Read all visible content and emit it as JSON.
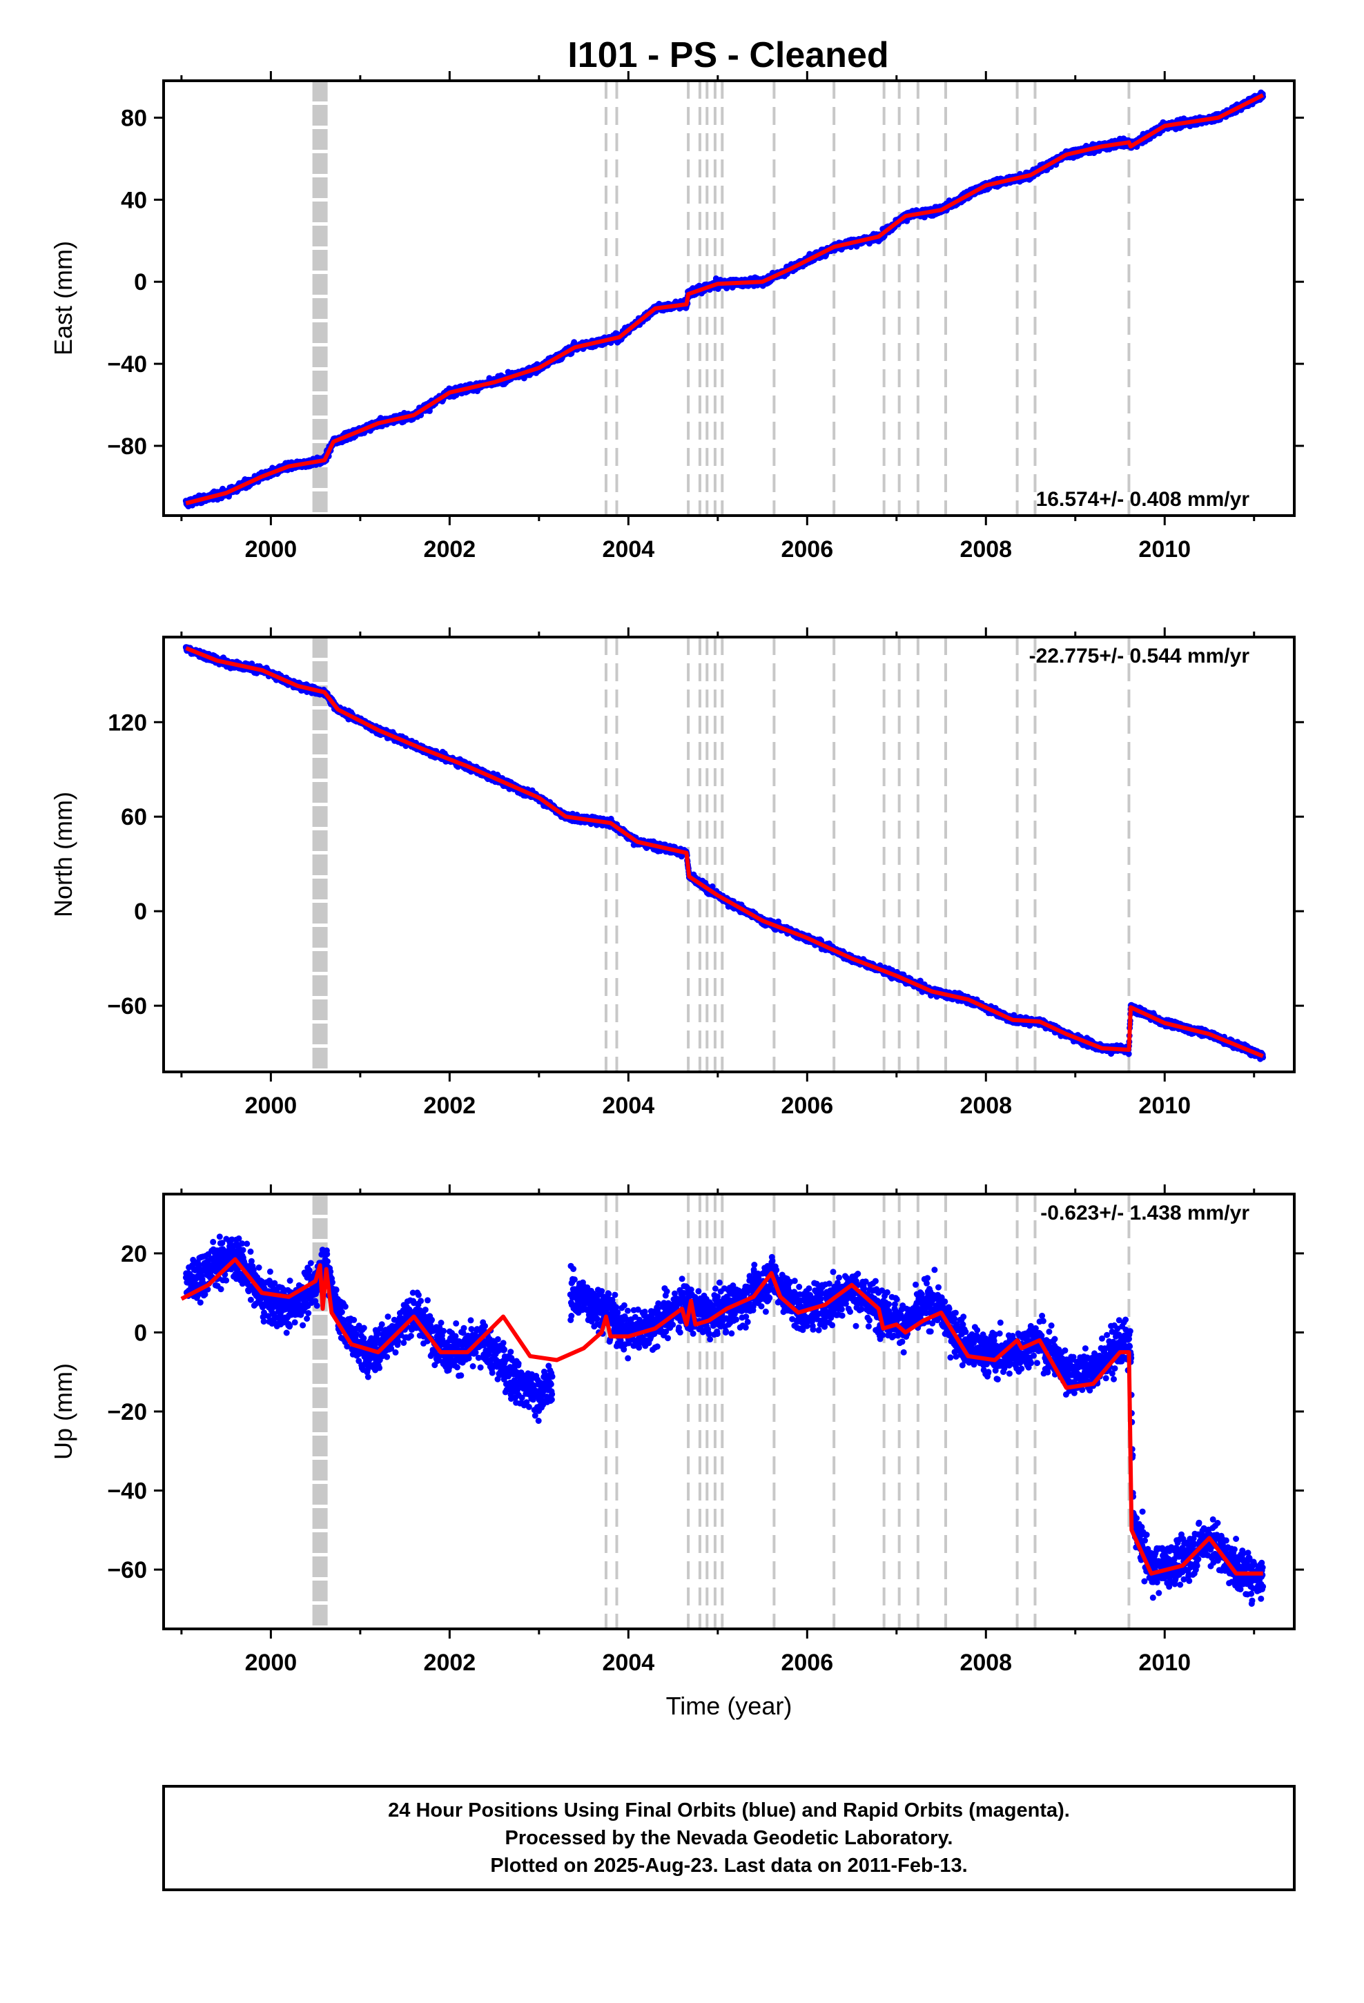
{
  "title": "I101  - PS - Cleaned",
  "colors": {
    "points": "#0000ff",
    "fit": "#ff0000",
    "event_lines": "#c8c8c8",
    "frame": "#000000"
  },
  "chart_data": [
    {
      "type": "scatter",
      "name": "east",
      "ylabel": "East (mm)",
      "xlabel": "",
      "xlim": [
        1998.8,
        2011.45
      ],
      "ylim": [
        -114,
        98
      ],
      "x_ticks": [
        2000,
        2002,
        2004,
        2006,
        2008,
        2010
      ],
      "y_ticks": [
        -80,
        -40,
        0,
        40,
        80
      ],
      "rate": "16.574+/- 0.408 mm/yr",
      "rate_position": "bottom-right",
      "grid": false,
      "trend": [
        [
          1999.05,
          -108
        ],
        [
          1999.5,
          -103
        ],
        [
          1999.9,
          -95
        ],
        [
          2000.2,
          -90
        ],
        [
          2000.6,
          -87
        ],
        [
          2000.7,
          -78
        ],
        [
          2001.2,
          -69
        ],
        [
          2001.6,
          -65
        ],
        [
          2002.0,
          -54
        ],
        [
          2002.5,
          -49
        ],
        [
          2003.0,
          -42
        ],
        [
          2003.4,
          -32
        ],
        [
          2003.9,
          -27
        ],
        [
          2004.3,
          -13
        ],
        [
          2004.65,
          -11
        ],
        [
          2004.67,
          -6
        ],
        [
          2005.0,
          -1
        ],
        [
          2005.5,
          0
        ],
        [
          2005.8,
          6
        ],
        [
          2006.3,
          17
        ],
        [
          2006.8,
          22
        ],
        [
          2007.1,
          32
        ],
        [
          2007.5,
          35
        ],
        [
          2008.0,
          47
        ],
        [
          2008.5,
          52
        ],
        [
          2008.9,
          62
        ],
        [
          2009.3,
          66
        ],
        [
          2009.6,
          68
        ],
        [
          2009.62,
          66
        ],
        [
          2010.0,
          76
        ],
        [
          2010.6,
          80
        ],
        [
          2011.1,
          91
        ]
      ],
      "scatter_noise": 1.8,
      "fit": [
        [
          1999.05,
          -108
        ],
        [
          1999.5,
          -103
        ],
        [
          1999.9,
          -95
        ],
        [
          2000.2,
          -90
        ],
        [
          2000.6,
          -87
        ],
        [
          2000.7,
          -78
        ],
        [
          2001.2,
          -69
        ],
        [
          2001.6,
          -65
        ],
        [
          2002.0,
          -54
        ],
        [
          2002.5,
          -49
        ],
        [
          2003.0,
          -42
        ],
        [
          2003.4,
          -32
        ],
        [
          2003.9,
          -27
        ],
        [
          2004.3,
          -13
        ],
        [
          2004.65,
          -11
        ],
        [
          2004.67,
          -6
        ],
        [
          2005.0,
          -1
        ],
        [
          2005.5,
          0
        ],
        [
          2005.8,
          6
        ],
        [
          2006.3,
          17
        ],
        [
          2006.8,
          22
        ],
        [
          2007.1,
          32
        ],
        [
          2007.5,
          35
        ],
        [
          2008.0,
          47
        ],
        [
          2008.5,
          52
        ],
        [
          2008.9,
          62
        ],
        [
          2009.3,
          66
        ],
        [
          2009.6,
          68
        ],
        [
          2009.62,
          66
        ],
        [
          2010.0,
          76
        ],
        [
          2010.6,
          80
        ],
        [
          2011.1,
          91
        ]
      ]
    },
    {
      "type": "scatter",
      "name": "north",
      "ylabel": "North (mm)",
      "xlabel": "",
      "xlim": [
        1998.8,
        2011.45
      ],
      "ylim": [
        -102,
        174
      ],
      "x_ticks": [
        2000,
        2002,
        2004,
        2006,
        2008,
        2010
      ],
      "y_ticks": [
        -60,
        0,
        60,
        120
      ],
      "rate": "-22.775+/- 0.544 mm/yr",
      "rate_position": "top-right",
      "grid": false,
      "trend": [
        [
          1999.05,
          167
        ],
        [
          1999.4,
          159
        ],
        [
          1999.9,
          153
        ],
        [
          2000.3,
          143
        ],
        [
          2000.6,
          139
        ],
        [
          2000.75,
          128
        ],
        [
          2001.2,
          115
        ],
        [
          2001.7,
          103
        ],
        [
          2002.2,
          92
        ],
        [
          2002.6,
          82
        ],
        [
          2003.0,
          72
        ],
        [
          2003.3,
          60
        ],
        [
          2003.8,
          56
        ],
        [
          2004.1,
          44
        ],
        [
          2004.65,
          37
        ],
        [
          2004.68,
          22
        ],
        [
          2005.0,
          10
        ],
        [
          2005.5,
          -6
        ],
        [
          2006.0,
          -17
        ],
        [
          2006.5,
          -30
        ],
        [
          2007.0,
          -41
        ],
        [
          2007.4,
          -51
        ],
        [
          2007.8,
          -56
        ],
        [
          2008.3,
          -69
        ],
        [
          2008.6,
          -70
        ],
        [
          2008.9,
          -78
        ],
        [
          2009.3,
          -87
        ],
        [
          2009.6,
          -88
        ],
        [
          2009.62,
          -61
        ],
        [
          2010.0,
          -71
        ],
        [
          2010.5,
          -78
        ],
        [
          2011.1,
          -92
        ]
      ],
      "scatter_noise": 2.2,
      "fit": [
        [
          1999.05,
          167
        ],
        [
          1999.4,
          159
        ],
        [
          1999.9,
          153
        ],
        [
          2000.3,
          143
        ],
        [
          2000.6,
          139
        ],
        [
          2000.75,
          128
        ],
        [
          2001.2,
          115
        ],
        [
          2001.7,
          103
        ],
        [
          2002.2,
          92
        ],
        [
          2002.6,
          82
        ],
        [
          2003.0,
          72
        ],
        [
          2003.3,
          60
        ],
        [
          2003.8,
          56
        ],
        [
          2004.1,
          44
        ],
        [
          2004.65,
          37
        ],
        [
          2004.68,
          22
        ],
        [
          2005.0,
          10
        ],
        [
          2005.5,
          -6
        ],
        [
          2006.0,
          -17
        ],
        [
          2006.5,
          -30
        ],
        [
          2007.0,
          -41
        ],
        [
          2007.4,
          -51
        ],
        [
          2007.8,
          -56
        ],
        [
          2008.3,
          -69
        ],
        [
          2008.6,
          -70
        ],
        [
          2008.9,
          -78
        ],
        [
          2009.3,
          -87
        ],
        [
          2009.6,
          -88
        ],
        [
          2009.62,
          -61
        ],
        [
          2010.0,
          -71
        ],
        [
          2010.5,
          -78
        ],
        [
          2011.1,
          -92
        ]
      ]
    },
    {
      "type": "scatter",
      "name": "up",
      "ylabel": "Up (mm)",
      "xlabel": "Time (year)",
      "xlim": [
        1998.8,
        2011.45
      ],
      "ylim": [
        -75,
        35
      ],
      "x_ticks": [
        2000,
        2002,
        2004,
        2006,
        2008,
        2010
      ],
      "y_ticks": [
        -60,
        -40,
        -20,
        0,
        20
      ],
      "rate": "-0.623+/- 1.438 mm/yr",
      "rate_position": "top-right",
      "grid": false,
      "data_gap": [
        2003.15,
        2003.35
      ],
      "trend": [
        [
          1999.05,
          12
        ],
        [
          1999.3,
          16
        ],
        [
          1999.6,
          20
        ],
        [
          1999.9,
          9
        ],
        [
          2000.2,
          6
        ],
        [
          2000.5,
          12
        ],
        [
          2000.6,
          18
        ],
        [
          2000.8,
          2
        ],
        [
          2001.1,
          -6
        ],
        [
          2001.6,
          5
        ],
        [
          2002.0,
          -5
        ],
        [
          2002.4,
          -3
        ],
        [
          2002.7,
          -11
        ],
        [
          2003.0,
          -16
        ],
        [
          2003.15,
          -13
        ],
        [
          2003.35,
          10
        ],
        [
          2003.7,
          6
        ],
        [
          2004.0,
          0
        ],
        [
          2004.3,
          2
        ],
        [
          2004.6,
          7
        ],
        [
          2004.9,
          4
        ],
        [
          2005.3,
          8
        ],
        [
          2005.6,
          14
        ],
        [
          2005.9,
          6
        ],
        [
          2006.2,
          7
        ],
        [
          2006.5,
          11
        ],
        [
          2006.8,
          6
        ],
        [
          2007.1,
          2
        ],
        [
          2007.4,
          8
        ],
        [
          2007.8,
          -4
        ],
        [
          2008.2,
          -6
        ],
        [
          2008.6,
          -2
        ],
        [
          2008.9,
          -10
        ],
        [
          2009.2,
          -10
        ],
        [
          2009.5,
          -3
        ],
        [
          2009.62,
          -4
        ],
        [
          2009.65,
          -48
        ],
        [
          2009.85,
          -60
        ],
        [
          2010.2,
          -58
        ],
        [
          2010.5,
          -52
        ],
        [
          2010.8,
          -60
        ],
        [
          2011.1,
          -62
        ]
      ],
      "scatter_noise": 5.5,
      "fit": [
        [
          1999.0,
          8.5
        ],
        [
          1999.3,
          12
        ],
        [
          1999.6,
          18.5
        ],
        [
          1999.9,
          10
        ],
        [
          2000.2,
          9
        ],
        [
          2000.5,
          13
        ],
        [
          2000.55,
          17
        ],
        [
          2000.58,
          6
        ],
        [
          2000.62,
          16
        ],
        [
          2000.68,
          5
        ],
        [
          2000.9,
          -3
        ],
        [
          2001.2,
          -5
        ],
        [
          2001.6,
          4
        ],
        [
          2001.9,
          -5
        ],
        [
          2002.2,
          -5
        ],
        [
          2002.6,
          4
        ],
        [
          2002.9,
          -6
        ],
        [
          2003.2,
          -7
        ],
        [
          2003.5,
          -4
        ],
        [
          2003.7,
          0
        ],
        [
          2003.75,
          4
        ],
        [
          2003.8,
          -1
        ],
        [
          2004.0,
          -1
        ],
        [
          2004.3,
          1
        ],
        [
          2004.6,
          6
        ],
        [
          2004.65,
          2
        ],
        [
          2004.7,
          8
        ],
        [
          2004.75,
          2
        ],
        [
          2004.9,
          3
        ],
        [
          2005.1,
          6
        ],
        [
          2005.4,
          9
        ],
        [
          2005.6,
          15
        ],
        [
          2005.7,
          9
        ],
        [
          2005.9,
          5
        ],
        [
          2006.2,
          7
        ],
        [
          2006.5,
          12
        ],
        [
          2006.8,
          6
        ],
        [
          2006.85,
          1
        ],
        [
          2007.0,
          2
        ],
        [
          2007.1,
          0
        ],
        [
          2007.3,
          3
        ],
        [
          2007.5,
          5
        ],
        [
          2007.8,
          -6
        ],
        [
          2008.1,
          -7
        ],
        [
          2008.35,
          -2
        ],
        [
          2008.4,
          -4
        ],
        [
          2008.6,
          -2
        ],
        [
          2008.9,
          -14
        ],
        [
          2009.2,
          -13
        ],
        [
          2009.5,
          -5
        ],
        [
          2009.6,
          -5
        ],
        [
          2009.63,
          -50
        ],
        [
          2009.85,
          -61
        ],
        [
          2010.2,
          -59
        ],
        [
          2010.5,
          -52
        ],
        [
          2010.8,
          -61
        ],
        [
          2011.1,
          -61
        ]
      ]
    }
  ],
  "event_lines": [
    2003.75,
    2003.87,
    2004.67,
    2004.8,
    2004.88,
    2004.97,
    2005.05,
    2005.63,
    2006.3,
    2006.86,
    2007.03,
    2007.24,
    2007.55,
    2008.35,
    2008.55,
    2009.6
  ],
  "antenna_change": 2000.55,
  "footer": {
    "line1": "24 Hour Positions Using Final Orbits (blue) and Rapid Orbits (magenta).",
    "line2": "Processed by the Nevada Geodetic Laboratory.",
    "line3": "Plotted on 2025-Aug-23. Last data on 2011-Feb-13."
  }
}
